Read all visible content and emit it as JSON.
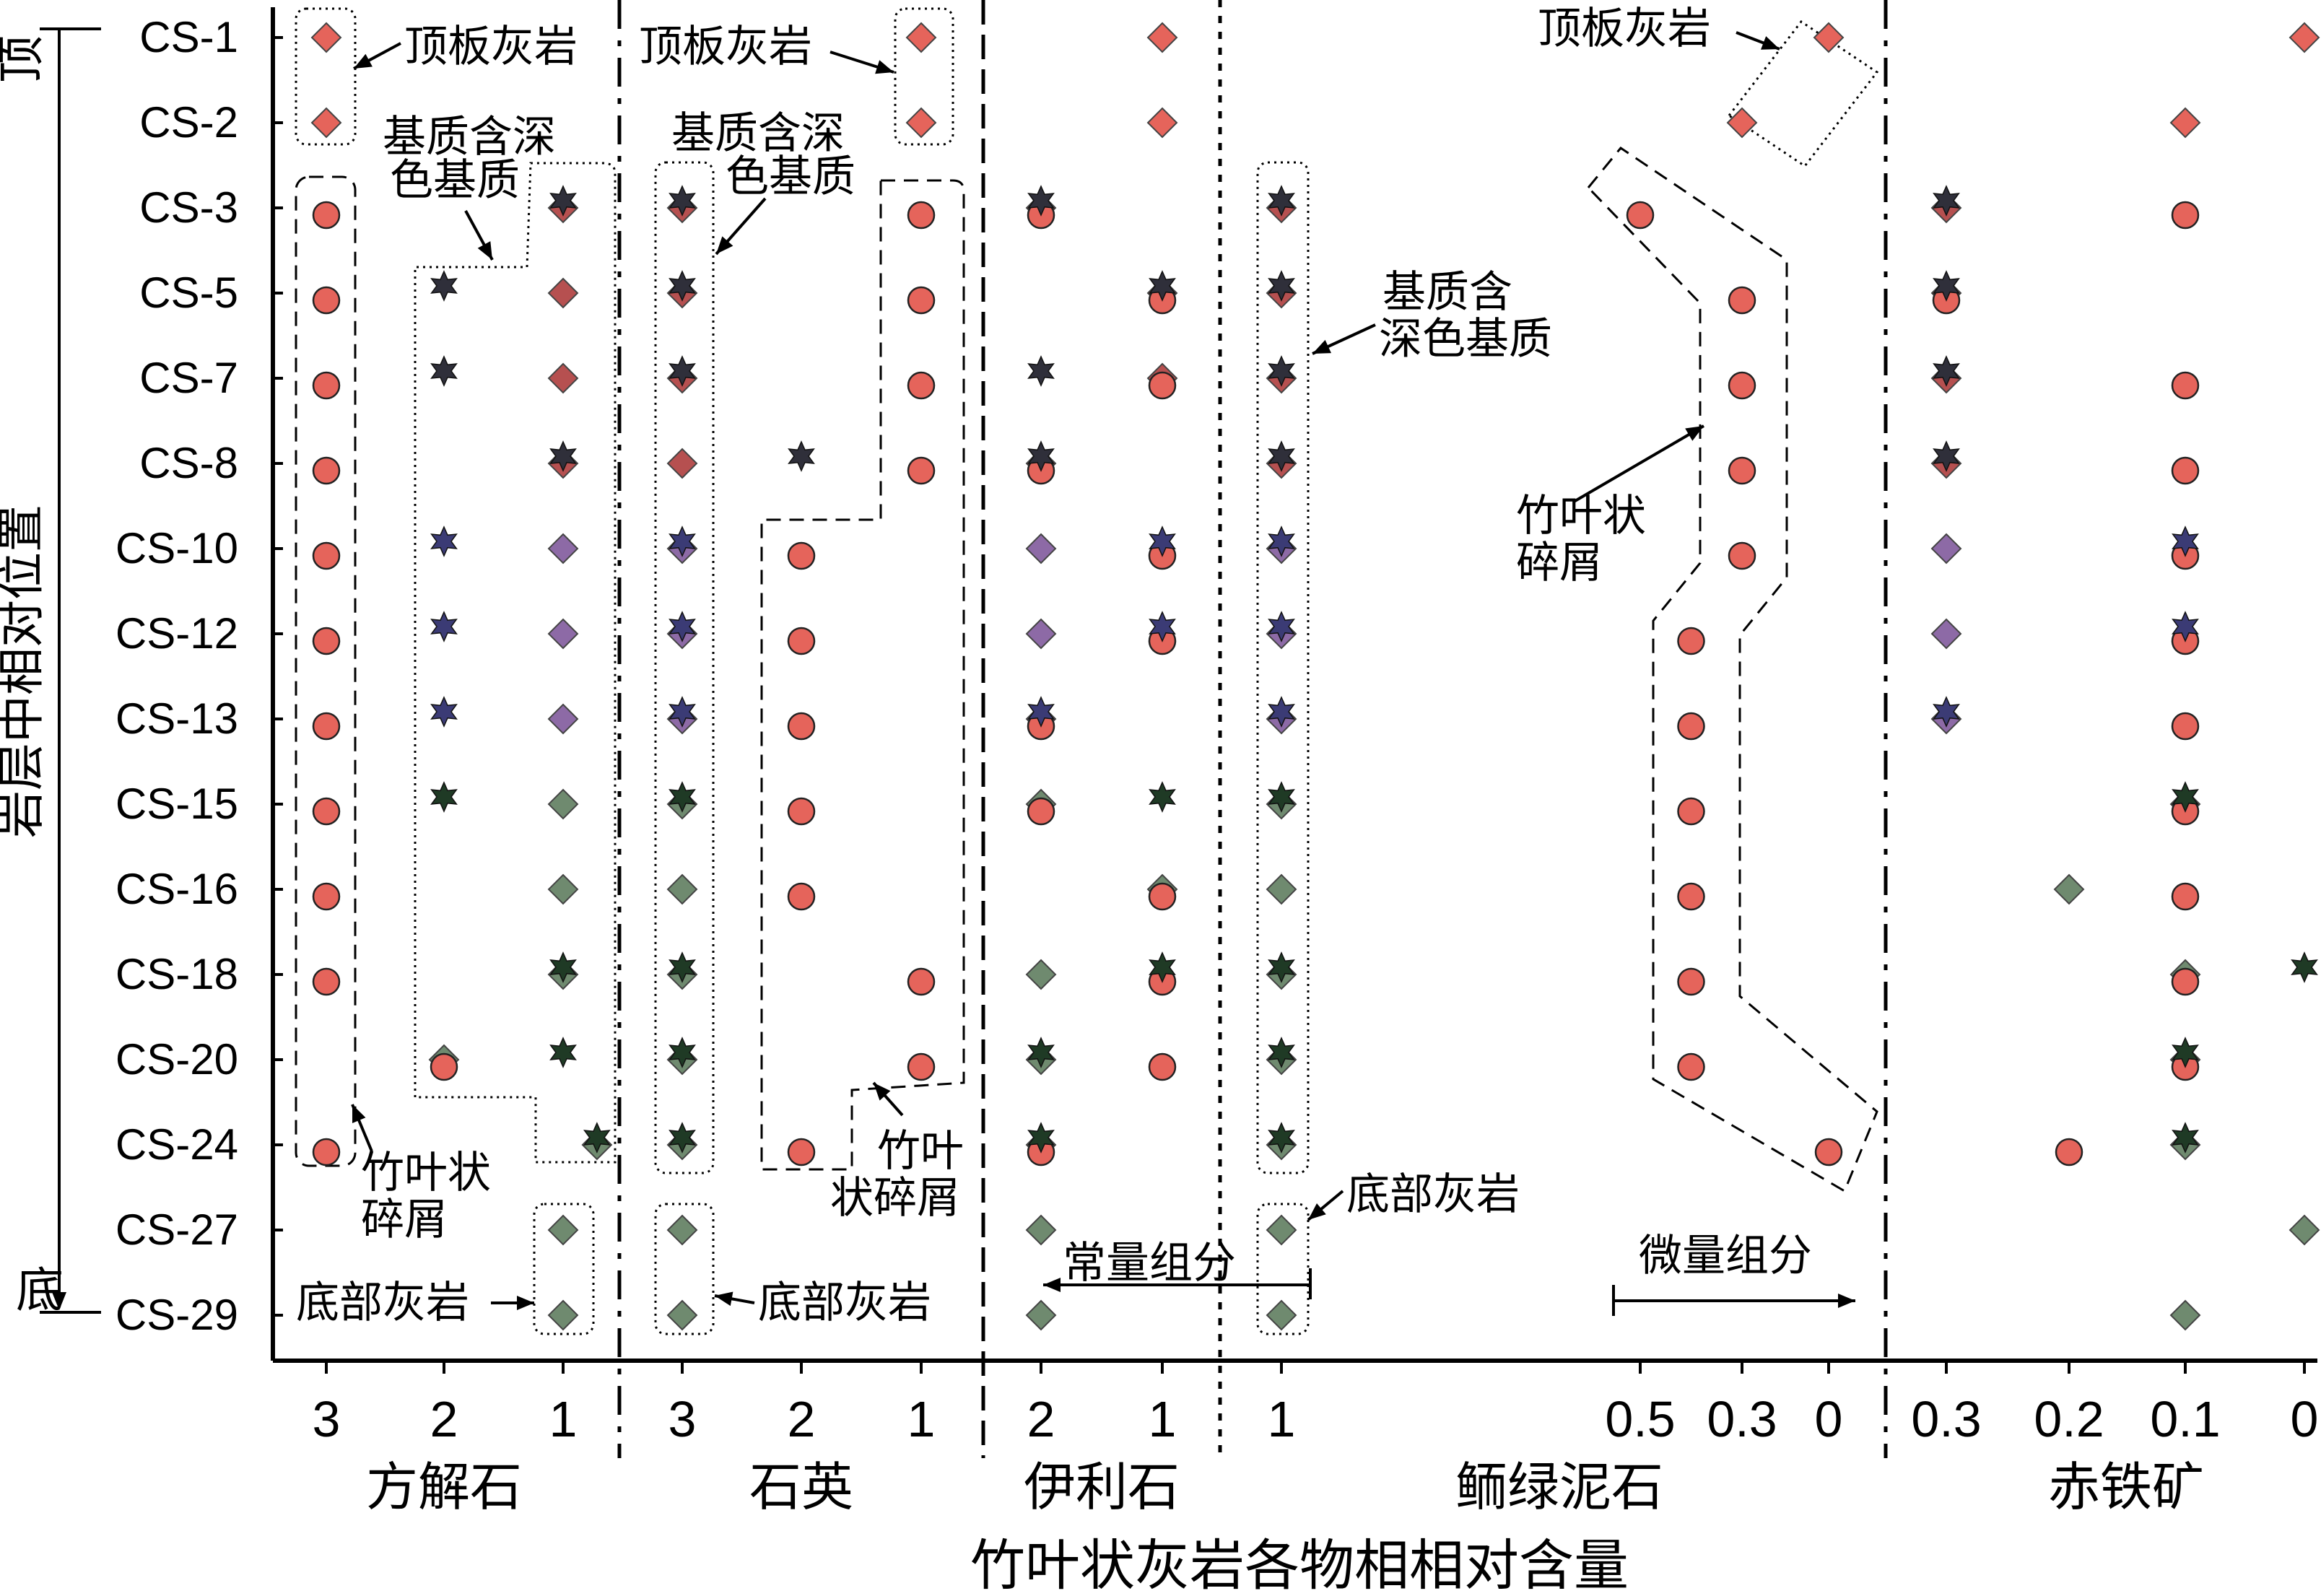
{
  "chart_data": {
    "type": "scatter",
    "xlabel": "竹叶状灰岩各物相相对含量",
    "ylabel": "岩层中相对位置",
    "y_top_label": "顶",
    "y_bottom_label": "底",
    "samples": [
      "CS-1",
      "CS-2",
      "CS-3",
      "CS-5",
      "CS-7",
      "CS-8",
      "CS-10",
      "CS-12",
      "CS-13",
      "CS-15",
      "CS-16",
      "CS-18",
      "CS-20",
      "CS-24",
      "CS-27",
      "CS-29"
    ],
    "panels": [
      {
        "name": "方解石",
        "ticks": [
          "3",
          "2",
          "1"
        ]
      },
      {
        "name": "石英",
        "ticks": [
          "3",
          "2",
          "1"
        ]
      },
      {
        "name": "伊利石",
        "ticks": [
          "2",
          "1"
        ]
      },
      {
        "name": "鲕绿泥石",
        "ticks": [
          "1",
          "0.5",
          "0.3",
          "0"
        ]
      },
      {
        "name": "赤铁矿",
        "ticks": [
          "0.3",
          "0.2",
          "0.1",
          "0"
        ]
      }
    ],
    "legend_categories": [
      {
        "key": "top_limestone",
        "label": "顶板灰岩",
        "marker": "diamond",
        "color": "#e5645b"
      },
      {
        "key": "debris",
        "label": "竹叶状碎屑",
        "marker": "circle",
        "color": "#e5645b"
      },
      {
        "key": "dark_matrix",
        "label": "基质含深色基质",
        "marker": "star",
        "color": "#2f2f3a"
      },
      {
        "key": "matrix",
        "label": "基质",
        "marker": "diamond",
        "color": "#8d6aa6"
      },
      {
        "key": "bottom_limestone",
        "label": "底部灰岩",
        "marker": "diamond",
        "color": "#6f8a6f"
      }
    ],
    "marker_colors": {
      "red": "#e5645b",
      "dark_red": "#b65050",
      "purple": "#8d6aa6",
      "green": "#6f8a6f",
      "star_dark": "#2f2f3a",
      "star_navy": "#3b3b75",
      "star_green": "#1f3a25"
    },
    "series": [
      {
        "panel": "方解石",
        "group": "顶板灰岩",
        "marker": "diamond",
        "points": [
          [
            3,
            "CS-1"
          ],
          [
            3,
            "CS-2"
          ]
        ]
      },
      {
        "panel": "方解石",
        "group": "竹叶状碎屑",
        "marker": "circle",
        "points": [
          [
            3,
            "CS-3"
          ],
          [
            3,
            "CS-5"
          ],
          [
            3,
            "CS-7"
          ],
          [
            3,
            "CS-8"
          ],
          [
            3,
            "CS-10"
          ],
          [
            3,
            "CS-12"
          ],
          [
            3,
            "CS-13"
          ],
          [
            3,
            "CS-15"
          ],
          [
            3,
            "CS-16"
          ],
          [
            3,
            "CS-18"
          ],
          [
            3,
            "CS-24"
          ],
          [
            2,
            "CS-20"
          ]
        ]
      },
      {
        "panel": "方解石",
        "group": "基质含深色基质",
        "marker": "star",
        "points": [
          [
            2,
            "CS-5"
          ],
          [
            2,
            "CS-7"
          ],
          [
            2,
            "CS-10"
          ],
          [
            2,
            "CS-12"
          ],
          [
            2,
            "CS-13"
          ],
          [
            2,
            "CS-15"
          ],
          [
            1,
            "CS-3"
          ],
          [
            1,
            "CS-8"
          ],
          [
            1,
            "CS-18"
          ],
          [
            1,
            "CS-20"
          ],
          [
            0.7,
            "CS-24"
          ]
        ]
      },
      {
        "panel": "方解石",
        "group": "基质",
        "marker": "diamond",
        "points": [
          [
            1,
            "CS-3"
          ],
          [
            1,
            "CS-5"
          ],
          [
            1,
            "CS-7"
          ],
          [
            1,
            "CS-8"
          ],
          [
            1,
            "CS-10"
          ],
          [
            1,
            "CS-12"
          ],
          [
            1,
            "CS-13"
          ],
          [
            1,
            "CS-15"
          ],
          [
            1,
            "CS-16"
          ],
          [
            1,
            "CS-18"
          ],
          [
            2,
            "CS-20"
          ],
          [
            0.7,
            "CS-24"
          ]
        ]
      },
      {
        "panel": "方解石",
        "group": "底部灰岩",
        "marker": "diamond",
        "points": [
          [
            1,
            "CS-27"
          ],
          [
            1,
            "CS-29"
          ]
        ]
      },
      {
        "panel": "石英",
        "group": "顶板灰岩",
        "marker": "diamond",
        "points": [
          [
            1,
            "CS-1"
          ],
          [
            1,
            "CS-2"
          ]
        ]
      },
      {
        "panel": "石英",
        "group": "竹叶状碎屑",
        "marker": "circle",
        "points": [
          [
            1,
            "CS-3"
          ],
          [
            1,
            "CS-5"
          ],
          [
            1,
            "CS-7"
          ],
          [
            1,
            "CS-8"
          ],
          [
            2,
            "CS-10"
          ],
          [
            2,
            "CS-12"
          ],
          [
            2,
            "CS-13"
          ],
          [
            2,
            "CS-15"
          ],
          [
            2,
            "CS-16"
          ],
          [
            1,
            "CS-18"
          ],
          [
            1,
            "CS-20"
          ],
          [
            2,
            "CS-24"
          ]
        ]
      },
      {
        "panel": "石英",
        "group": "基质含深色基质",
        "marker": "star",
        "points": [
          [
            3,
            "CS-3"
          ],
          [
            3,
            "CS-5"
          ],
          [
            3,
            "CS-7"
          ],
          [
            2,
            "CS-8"
          ],
          [
            3,
            "CS-10"
          ],
          [
            3,
            "CS-12"
          ],
          [
            3,
            "CS-13"
          ],
          [
            3,
            "CS-15"
          ],
          [
            3,
            "CS-18"
          ],
          [
            3,
            "CS-20"
          ],
          [
            3,
            "CS-24"
          ]
        ]
      },
      {
        "panel": "石英",
        "group": "基质",
        "marker": "diamond",
        "points": [
          [
            3,
            "CS-3"
          ],
          [
            3,
            "CS-5"
          ],
          [
            3,
            "CS-7"
          ],
          [
            3,
            "CS-8"
          ],
          [
            3,
            "CS-10"
          ],
          [
            3,
            "CS-12"
          ],
          [
            3,
            "CS-13"
          ],
          [
            3,
            "CS-15"
          ],
          [
            3,
            "CS-16"
          ],
          [
            3,
            "CS-18"
          ],
          [
            3,
            "CS-20"
          ],
          [
            3,
            "CS-24"
          ]
        ]
      },
      {
        "panel": "石英",
        "group": "底部灰岩",
        "marker": "diamond",
        "points": [
          [
            3,
            "CS-27"
          ],
          [
            3,
            "CS-29"
          ]
        ]
      },
      {
        "panel": "伊利石",
        "group": "顶板灰岩",
        "marker": "diamond",
        "points": [
          [
            1,
            "CS-1"
          ],
          [
            1,
            "CS-2"
          ]
        ]
      },
      {
        "panel": "伊利石",
        "group": "竹叶状碎屑",
        "marker": "circle",
        "points": [
          [
            2,
            "CS-3"
          ],
          [
            1,
            "CS-5"
          ],
          [
            1,
            "CS-7"
          ],
          [
            2,
            "CS-8"
          ],
          [
            1,
            "CS-10"
          ],
          [
            1,
            "CS-12"
          ],
          [
            2,
            "CS-13"
          ],
          [
            2,
            "CS-15"
          ],
          [
            1,
            "CS-16"
          ],
          [
            1,
            "CS-18"
          ],
          [
            1,
            "CS-20"
          ],
          [
            2,
            "CS-24"
          ]
        ]
      },
      {
        "panel": "伊利石",
        "group": "基质含深色基质",
        "marker": "star",
        "points": [
          [
            2,
            "CS-3"
          ],
          [
            1,
            "CS-5"
          ],
          [
            2,
            "CS-7"
          ],
          [
            2,
            "CS-8"
          ],
          [
            1,
            "CS-10"
          ],
          [
            1,
            "CS-12"
          ],
          [
            2,
            "CS-13"
          ],
          [
            1,
            "CS-15"
          ],
          [
            1,
            "CS-18"
          ],
          [
            2,
            "CS-20"
          ],
          [
            2,
            "CS-24"
          ]
        ]
      },
      {
        "panel": "伊利石",
        "group": "基质",
        "marker": "diamond",
        "points": [
          [
            2,
            "CS-3"
          ],
          [
            1,
            "CS-5"
          ],
          [
            1,
            "CS-7"
          ],
          [
            2,
            "CS-8"
          ],
          [
            2,
            "CS-10"
          ],
          [
            2,
            "CS-12"
          ],
          [
            2,
            "CS-13"
          ],
          [
            2,
            "CS-15"
          ],
          [
            1,
            "CS-16"
          ],
          [
            2,
            "CS-18"
          ],
          [
            2,
            "CS-20"
          ],
          [
            2,
            "CS-24"
          ]
        ]
      },
      {
        "panel": "伊利石",
        "group": "底部灰岩",
        "marker": "diamond",
        "points": [
          [
            2,
            "CS-27"
          ],
          [
            2,
            "CS-29"
          ]
        ]
      },
      {
        "panel": "鲕绿泥石",
        "group": "顶板灰岩",
        "marker": "diamond",
        "points": [
          [
            0,
            "CS-1"
          ],
          [
            0.3,
            "CS-2"
          ]
        ]
      },
      {
        "panel": "鲕绿泥石",
        "group": "竹叶状碎屑",
        "marker": "circle",
        "points": [
          [
            0.5,
            "CS-3"
          ],
          [
            0.3,
            "CS-5"
          ],
          [
            0.3,
            "CS-7"
          ],
          [
            0.3,
            "CS-8"
          ],
          [
            0.3,
            "CS-10"
          ],
          [
            0.4,
            "CS-12"
          ],
          [
            0.4,
            "CS-13"
          ],
          [
            0.4,
            "CS-15"
          ],
          [
            0.4,
            "CS-16"
          ],
          [
            0.4,
            "CS-18"
          ],
          [
            0.4,
            "CS-20"
          ],
          [
            0,
            "CS-24"
          ]
        ]
      },
      {
        "panel": "鲕绿泥石",
        "group": "基质含深色基质",
        "marker": "star",
        "points": [
          [
            1,
            "CS-3"
          ],
          [
            1,
            "CS-5"
          ],
          [
            1,
            "CS-7"
          ],
          [
            1,
            "CS-8"
          ],
          [
            1,
            "CS-10"
          ],
          [
            1,
            "CS-12"
          ],
          [
            1,
            "CS-13"
          ],
          [
            1,
            "CS-15"
          ],
          [
            1,
            "CS-18"
          ],
          [
            1,
            "CS-20"
          ],
          [
            1,
            "CS-24"
          ]
        ]
      },
      {
        "panel": "鲕绿泥石",
        "group": "基质",
        "marker": "diamond",
        "points": [
          [
            1,
            "CS-3"
          ],
          [
            1,
            "CS-5"
          ],
          [
            1,
            "CS-7"
          ],
          [
            1,
            "CS-8"
          ],
          [
            1,
            "CS-10"
          ],
          [
            1,
            "CS-12"
          ],
          [
            1,
            "CS-13"
          ],
          [
            1,
            "CS-15"
          ],
          [
            1,
            "CS-16"
          ],
          [
            1,
            "CS-18"
          ],
          [
            1,
            "CS-20"
          ],
          [
            1,
            "CS-24"
          ]
        ]
      },
      {
        "panel": "鲕绿泥石",
        "group": "底部灰岩",
        "marker": "diamond",
        "points": [
          [
            1,
            "CS-27"
          ],
          [
            1,
            "CS-29"
          ]
        ]
      },
      {
        "panel": "赤铁矿",
        "group": "顶板灰岩",
        "marker": "diamond",
        "points": [
          [
            0,
            "CS-1"
          ],
          [
            0.1,
            "CS-2"
          ]
        ]
      },
      {
        "panel": "赤铁矿",
        "group": "竹叶状碎屑",
        "marker": "circle",
        "points": [
          [
            0.1,
            "CS-3"
          ],
          [
            0.3,
            "CS-5"
          ],
          [
            0.1,
            "CS-7"
          ],
          [
            0.1,
            "CS-8"
          ],
          [
            0.1,
            "CS-10"
          ],
          [
            0.1,
            "CS-12"
          ],
          [
            0.1,
            "CS-13"
          ],
          [
            0.1,
            "CS-15"
          ],
          [
            0.1,
            "CS-16"
          ],
          [
            0.1,
            "CS-18"
          ],
          [
            0.1,
            "CS-20"
          ],
          [
            0.2,
            "CS-24"
          ]
        ]
      },
      {
        "panel": "赤铁矿",
        "group": "基质含深色基质",
        "marker": "star",
        "points": [
          [
            0.3,
            "CS-3"
          ],
          [
            0.3,
            "CS-5"
          ],
          [
            0.3,
            "CS-7"
          ],
          [
            0.3,
            "CS-8"
          ],
          [
            0.1,
            "CS-10"
          ],
          [
            0.1,
            "CS-12"
          ],
          [
            0.3,
            "CS-13"
          ],
          [
            0.1,
            "CS-15"
          ],
          [
            0,
            "CS-18"
          ],
          [
            0.1,
            "CS-20"
          ],
          [
            0.1,
            "CS-24"
          ]
        ]
      },
      {
        "panel": "赤铁矿",
        "group": "基质",
        "marker": "diamond",
        "points": [
          [
            0.3,
            "CS-3"
          ],
          [
            0.3,
            "CS-5"
          ],
          [
            0.3,
            "CS-7"
          ],
          [
            0.3,
            "CS-8"
          ],
          [
            0.3,
            "CS-10"
          ],
          [
            0.3,
            "CS-12"
          ],
          [
            0.3,
            "CS-13"
          ],
          [
            0.1,
            "CS-15"
          ],
          [
            0.2,
            "CS-16"
          ],
          [
            0.1,
            "CS-18"
          ],
          [
            0.1,
            "CS-20"
          ],
          [
            0.1,
            "CS-24"
          ]
        ]
      },
      {
        "panel": "赤铁矿",
        "group": "底部灰岩",
        "marker": "diamond",
        "points": [
          [
            0,
            "CS-27"
          ],
          [
            0.1,
            "CS-29"
          ]
        ]
      }
    ],
    "annotations": {
      "top_limestone": "顶板灰岩",
      "matrix_dark_two_line": [
        "基质含深",
        "色基质"
      ],
      "matrix_dark_chlorite": [
        "基质含",
        "深色基质"
      ],
      "debris_two_line": [
        "竹叶状",
        "碎屑"
      ],
      "debris_alt_two_line": [
        "竹叶",
        "状碎屑"
      ],
      "bottom_limestone": "底部灰岩",
      "major_components": "常量组分",
      "minor_components": "微量组分"
    }
  }
}
